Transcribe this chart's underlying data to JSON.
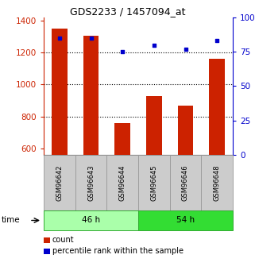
{
  "title": "GDS2233 / 1457094_at",
  "categories": [
    "GSM96642",
    "GSM96643",
    "GSM96644",
    "GSM96645",
    "GSM96646",
    "GSM96648"
  ],
  "counts": [
    1350,
    1305,
    760,
    930,
    867,
    1160
  ],
  "percentiles": [
    85,
    85,
    75,
    80,
    77,
    83
  ],
  "ylim_left": [
    560,
    1420
  ],
  "ylim_right": [
    0,
    100
  ],
  "yticks_left": [
    600,
    800,
    1000,
    1200,
    1400
  ],
  "yticks_right": [
    0,
    25,
    50,
    75,
    100
  ],
  "ytick_labels_right": [
    "0",
    "25",
    "50",
    "75",
    "100%"
  ],
  "bar_color": "#cc2200",
  "dot_color": "#0000cc",
  "groups": [
    {
      "label": "46 h",
      "indices": [
        0,
        1,
        2
      ],
      "color": "#aaffaa"
    },
    {
      "label": "54 h",
      "indices": [
        3,
        4,
        5
      ],
      "color": "#33dd33"
    }
  ],
  "time_label": "time",
  "legend_count": "count",
  "legend_percentile": "percentile rank within the sample",
  "xlabel_box_color": "#cccccc",
  "xlabel_box_border": "#999999"
}
